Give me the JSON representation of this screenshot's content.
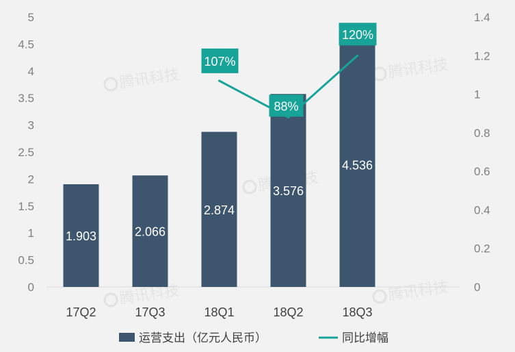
{
  "chart_data": {
    "type": "bar",
    "categories": [
      "17Q2",
      "17Q3",
      "18Q1",
      "18Q2",
      "18Q3"
    ],
    "series": [
      {
        "name": "运营支出（亿元人民币）",
        "type": "bar",
        "axis": "left",
        "values": [
          1.903,
          2.066,
          2.874,
          3.576,
          4.536
        ],
        "data_labels": [
          "1.903",
          "2.066",
          "2.874",
          "3.576",
          "4.536"
        ],
        "color": "#3d566e"
      },
      {
        "name": "同比增幅",
        "type": "line",
        "axis": "right",
        "values": [
          null,
          null,
          1.07,
          0.88,
          1.2
        ],
        "data_labels": [
          null,
          null,
          "107%",
          "88%",
          "120%"
        ],
        "color": "#17a398"
      }
    ],
    "y_left": {
      "range": [
        0,
        5
      ],
      "ticks": [
        "0",
        "0.5",
        "1",
        "1.5",
        "2",
        "2.5",
        "3",
        "3.5",
        "4",
        "4.5",
        "5"
      ]
    },
    "y_right": {
      "range": [
        0,
        1.4
      ],
      "ticks": [
        "0",
        "0.2",
        "0.4",
        "0.6",
        "0.8",
        "1",
        "1.2",
        "1.4"
      ]
    },
    "grid": false,
    "legend_position": "bottom"
  },
  "watermark": {
    "text": "腾讯科技"
  },
  "colors": {
    "background": "#f2f2f2",
    "bar": "#3d566e",
    "line": "#17a398",
    "axis": "#d9d9d9"
  }
}
